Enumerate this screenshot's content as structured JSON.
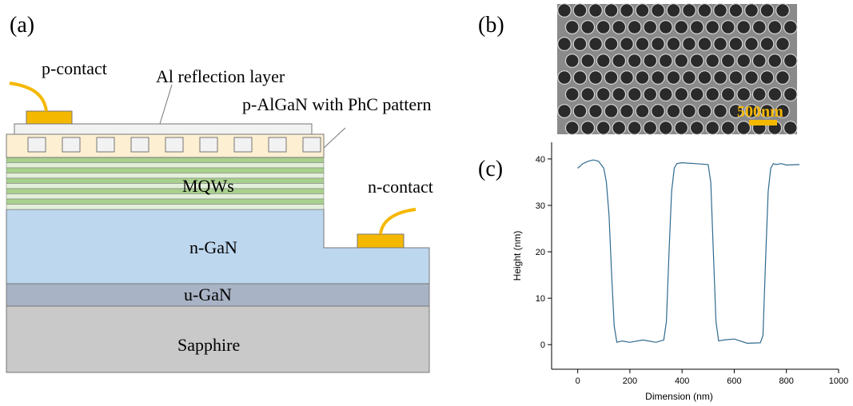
{
  "panel_a": {
    "label": "(a)",
    "p_contact": "p-contact",
    "al_layer": "Al reflection layer",
    "p_algan": "p-AlGaN with PhC pattern",
    "mqws": "MQWs",
    "n_contact": "n-contact",
    "n_gan": "n-GaN",
    "u_gan": "u-GaN",
    "sapphire": "Sapphire"
  },
  "panel_b": {
    "label": "(b)",
    "scale_bar": "500nm"
  },
  "chart_data": {
    "type": "line",
    "label": "(c)",
    "x_label": "Dimension (nm)",
    "y_label": "Height (nm)",
    "x": [
      0,
      20,
      40,
      60,
      80,
      100,
      110,
      120,
      130,
      140,
      150,
      170,
      200,
      250,
      300,
      330,
      340,
      350,
      360,
      370,
      380,
      400,
      450,
      500,
      510,
      520,
      530,
      540,
      560,
      600,
      650,
      700,
      710,
      720,
      730,
      740,
      750,
      760,
      780,
      800,
      850
    ],
    "series": [
      {
        "color": "#2e6a8e",
        "values": [
          38,
          39,
          39.5,
          39.8,
          39.5,
          38,
          35,
          28,
          15,
          4,
          0.5,
          0.8,
          0.5,
          1,
          0.5,
          1,
          5,
          20,
          33,
          38,
          39,
          39.2,
          39,
          38.8,
          35,
          20,
          5,
          0.8,
          1,
          1.2,
          0.3,
          0.4,
          2,
          18,
          33,
          38,
          39,
          38.8,
          39,
          38.7,
          38.8
        ]
      }
    ],
    "xlim": [
      -100,
      1000
    ],
    "ylim": [
      -5.3,
      43.6
    ],
    "xticks": [
      0,
      200,
      400,
      600,
      800,
      1000
    ],
    "yticks": [
      0,
      10,
      20,
      30,
      40
    ]
  }
}
